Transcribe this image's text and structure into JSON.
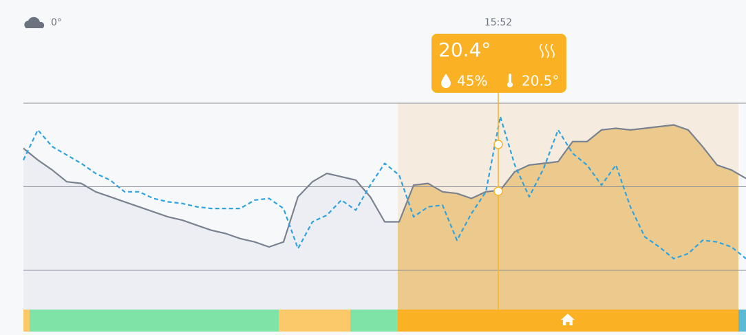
{
  "weather": {
    "temperature": "0°"
  },
  "cursor": {
    "time": "15:52",
    "temperature": "20.4°",
    "humidity": "45%",
    "setpoint": "20.5°"
  },
  "chart_data": {
    "type": "line",
    "ylim": [
      0,
      100
    ],
    "yticks": [
      0,
      50,
      100
    ],
    "grid": true,
    "series": [
      {
        "color": "#7a8290",
        "dash": false,
        "values": [
          73,
          66,
          60,
          53,
          52,
          47,
          44,
          41,
          38,
          35,
          32,
          30,
          27,
          24,
          22,
          19,
          17,
          14,
          17,
          44,
          53,
          58,
          56,
          54,
          44,
          29,
          29,
          51,
          52,
          47,
          46,
          43,
          47,
          48,
          59,
          63,
          64,
          65,
          77,
          77,
          84,
          85,
          84,
          85,
          86,
          87,
          84,
          74,
          63,
          60,
          55
        ]
      },
      {
        "color": "#2ea3e0",
        "dash": true,
        "values": [
          66,
          84,
          74,
          69,
          64,
          58,
          54,
          47,
          47,
          43,
          41,
          40,
          38,
          37,
          37,
          37,
          42,
          43,
          37,
          13,
          29,
          33,
          42,
          36,
          51,
          64,
          57,
          32,
          38,
          39,
          18,
          34,
          47,
          92,
          63,
          44,
          61,
          84,
          70,
          63,
          51,
          63,
          38,
          20,
          14,
          7,
          10,
          18,
          17,
          14,
          7
        ]
      }
    ]
  }
}
